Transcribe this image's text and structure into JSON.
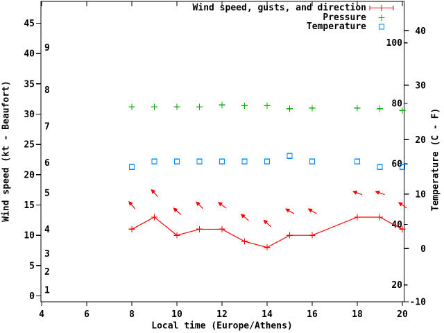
{
  "chart": {
    "background": "#ffffff",
    "text_color": "#000000",
    "legend": {
      "entries": [
        {
          "label": "Wind speed, gusts, and direction",
          "color": "#ff0000",
          "marker": "errorbar-line-plus"
        },
        {
          "label": "Pressure",
          "color": "#00aa00",
          "marker": "plus"
        },
        {
          "label": "Temperature",
          "color": "#0088ff",
          "marker": "open-square"
        }
      ]
    },
    "axes": {
      "x": {
        "title": "Local time (Europe/Athens)",
        "min": 4,
        "max": 20,
        "tick_values": [
          4,
          6,
          8,
          10,
          12,
          14,
          16,
          18,
          20
        ],
        "tick_labels": [
          "4",
          "6",
          "8",
          "10",
          "12",
          "14",
          "16",
          "18",
          "20"
        ]
      },
      "y_left": {
        "title": "Wind speed (kt - Beaufort)",
        "outer_unit": "kt",
        "outer_tick_values": [
          0,
          5,
          10,
          15,
          20,
          25,
          30,
          35,
          40,
          45
        ],
        "inner_unit": "Beaufort",
        "inner_labels": [
          {
            "label": "1",
            "kt": 1
          },
          {
            "label": "2",
            "kt": 4
          },
          {
            "label": "3",
            "kt": 7
          },
          {
            "label": "4",
            "kt": 11
          },
          {
            "label": "5",
            "kt": 17
          },
          {
            "label": "6",
            "kt": 22
          },
          {
            "label": "7",
            "kt": 28
          },
          {
            "label": "8",
            "kt": 34
          },
          {
            "label": "9",
            "kt": 41
          }
        ]
      },
      "y_right": {
        "title": "Temperature (C - F)",
        "outer_unit": "C",
        "outer_tick_values": [
          -10,
          0,
          10,
          20,
          30,
          40
        ],
        "inner_unit": "F",
        "inner_tick_values": [
          20,
          40,
          60,
          80,
          100
        ]
      }
    }
  },
  "chart_data": {
    "type": "line",
    "title": "",
    "xlabel": "Local time (Europe/Athens)",
    "x_hours": [
      8,
      9,
      10,
      11,
      12,
      13,
      14,
      15,
      16,
      18,
      19,
      20
    ],
    "note": "no data at hour 17; line connects 16 to 18 directly",
    "series": [
      {
        "name": "Wind speed, gusts, and direction",
        "render": "linespoints",
        "marker": "plus",
        "color": "#ff0000",
        "y_axis": "kt",
        "values": [
          11,
          13,
          10,
          11,
          11,
          9,
          8,
          10,
          10,
          13,
          13,
          11
        ]
      },
      {
        "name": "Wind gusts / direction arrows",
        "render": "direction-arrows",
        "color": "#ff0000",
        "y_axis": "kt",
        "values": [
          15,
          17,
          14,
          15,
          15,
          13,
          12,
          14,
          14,
          17,
          17,
          15
        ],
        "angles_deg": [
          130,
          132,
          138,
          135,
          143,
          140,
          137,
          150,
          150,
          160,
          160,
          145
        ]
      },
      {
        "name": "Pressure",
        "render": "points",
        "marker": "plus",
        "color": "#00aa00",
        "y_axis": "kt",
        "values": [
          31.2,
          31.2,
          31.2,
          31.2,
          31.5,
          31.4,
          31.4,
          30.9,
          31.0,
          31.0,
          30.9,
          30.6
        ]
      },
      {
        "name": "Temperature",
        "render": "points",
        "marker": "open-square",
        "color": "#0088ff",
        "y_axis": "c",
        "values": [
          15,
          16,
          16,
          16,
          16,
          16,
          16,
          17,
          16,
          16,
          15,
          15
        ]
      }
    ]
  }
}
